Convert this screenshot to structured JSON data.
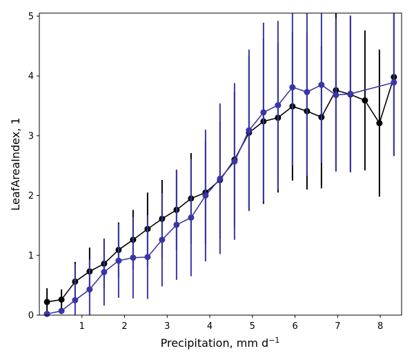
{
  "chart_data": {
    "type": "line",
    "title": "",
    "xlabel": "Precipitation,  mm d",
    "xlabel_superscript": "−1",
    "ylabel": "LeafAreaIndex,  1",
    "xlim": [
      0.0,
      8.5
    ],
    "ylim": [
      0,
      5.05
    ],
    "xticks": [
      1,
      2,
      3,
      4,
      5,
      6,
      7,
      8
    ],
    "yticks": [
      0,
      1,
      2,
      3,
      4,
      5
    ],
    "grid": false,
    "legend": "none",
    "series": [
      {
        "name": "black",
        "color": "#000000",
        "x": [
          0.18,
          0.52,
          0.84,
          1.18,
          1.52,
          1.86,
          2.2,
          2.54,
          2.88,
          3.22,
          3.56,
          3.9,
          4.24,
          4.58,
          4.92,
          5.26,
          5.6,
          5.94,
          6.28,
          6.62,
          6.96,
          7.3,
          7.64,
          7.98,
          8.32
        ],
        "y": [
          0.22,
          0.26,
          0.56,
          0.73,
          0.86,
          1.09,
          1.26,
          1.44,
          1.61,
          1.76,
          1.95,
          2.05,
          2.26,
          2.6,
          3.05,
          3.24,
          3.3,
          3.49,
          3.41,
          3.31,
          3.76,
          3.69,
          3.59,
          3.21,
          3.98
        ],
        "err": [
          0.23,
          0.17,
          0.33,
          0.4,
          0.42,
          0.46,
          0.5,
          0.61,
          0.65,
          0.67,
          0.76,
          0.86,
          0.98,
          1.13,
          1.29,
          1.38,
          1.25,
          1.24,
          1.31,
          1.19,
          1.34,
          1.3,
          1.17,
          1.23,
          1.32
        ]
      },
      {
        "name": "blue",
        "color": "#3a36a6",
        "x": [
          0.18,
          0.52,
          0.84,
          1.18,
          1.52,
          1.86,
          2.2,
          2.54,
          2.88,
          3.22,
          3.56,
          3.9,
          4.24,
          4.58,
          4.92,
          5.26,
          5.6,
          5.94,
          6.28,
          6.62,
          6.96,
          7.3,
          8.32
        ],
        "y": [
          0.02,
          0.07,
          0.25,
          0.43,
          0.72,
          0.91,
          0.96,
          0.97,
          1.26,
          1.51,
          1.63,
          2.0,
          2.28,
          2.57,
          3.09,
          3.39,
          3.51,
          3.81,
          3.73,
          3.85,
          3.68,
          3.7,
          3.89
        ],
        "err": [
          0.05,
          0.05,
          0.6,
          0.5,
          0.56,
          0.62,
          0.68,
          0.7,
          0.78,
          0.92,
          0.98,
          1.1,
          1.26,
          1.31,
          1.35,
          1.5,
          1.41,
          1.31,
          1.4,
          1.3,
          1.28,
          1.31,
          1.23
        ]
      }
    ]
  }
}
